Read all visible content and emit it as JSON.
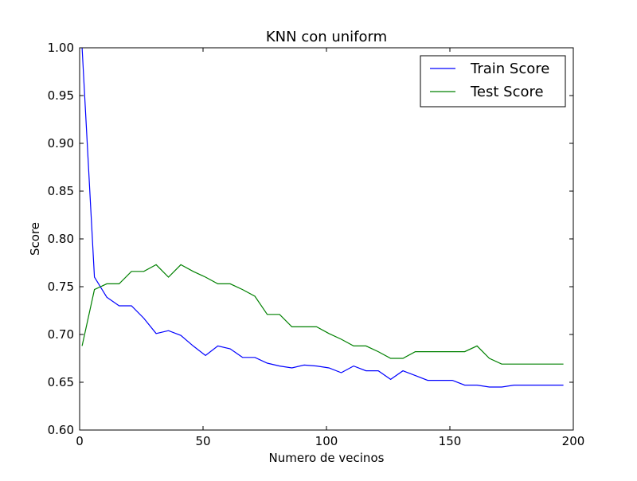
{
  "chart_data": {
    "type": "line",
    "title": "KNN con uniform",
    "xlabel": "Numero de vecinos",
    "ylabel": "Score",
    "xlim": [
      0,
      200
    ],
    "ylim": [
      0.6,
      1.0
    ],
    "x_ticks": [
      0,
      50,
      100,
      150,
      200
    ],
    "y_ticks": [
      0.6,
      0.65,
      0.7,
      0.75,
      0.8,
      0.85,
      0.9,
      0.95,
      1.0
    ],
    "x_tick_labels": [
      "0",
      "50",
      "100",
      "150",
      "200"
    ],
    "y_tick_labels": [
      "0.60",
      "0.65",
      "0.70",
      "0.75",
      "0.80",
      "0.85",
      "0.90",
      "0.95",
      "1.00"
    ],
    "grid": false,
    "legend_position": "top-right",
    "x": [
      1,
      6,
      11,
      16,
      21,
      26,
      31,
      36,
      41,
      46,
      51,
      56,
      61,
      66,
      71,
      76,
      81,
      86,
      91,
      96,
      101,
      106,
      111,
      116,
      121,
      126,
      131,
      136,
      141,
      146,
      151,
      156,
      161,
      166,
      171,
      176,
      181,
      186,
      191,
      196
    ],
    "series": [
      {
        "name": "Train Score",
        "color": "#0000ff",
        "values": [
          1.0,
          0.76,
          0.739,
          0.73,
          0.73,
          0.717,
          0.701,
          0.704,
          0.699,
          0.688,
          0.678,
          0.688,
          0.685,
          0.676,
          0.676,
          0.67,
          0.667,
          0.665,
          0.668,
          0.667,
          0.665,
          0.66,
          0.667,
          0.662,
          0.662,
          0.653,
          0.662,
          0.657,
          0.652,
          0.652,
          0.652,
          0.647,
          0.647,
          0.645,
          0.645,
          0.647,
          0.647,
          0.647,
          0.647,
          0.647
        ]
      },
      {
        "name": "Test Score",
        "color": "#008000",
        "values": [
          0.688,
          0.747,
          0.753,
          0.753,
          0.766,
          0.766,
          0.773,
          0.76,
          0.773,
          0.766,
          0.76,
          0.753,
          0.753,
          0.747,
          0.74,
          0.721,
          0.721,
          0.708,
          0.708,
          0.708,
          0.701,
          0.695,
          0.688,
          0.688,
          0.682,
          0.675,
          0.675,
          0.682,
          0.682,
          0.682,
          0.682,
          0.682,
          0.688,
          0.675,
          0.669,
          0.669,
          0.669,
          0.669,
          0.669,
          0.669
        ]
      }
    ]
  }
}
